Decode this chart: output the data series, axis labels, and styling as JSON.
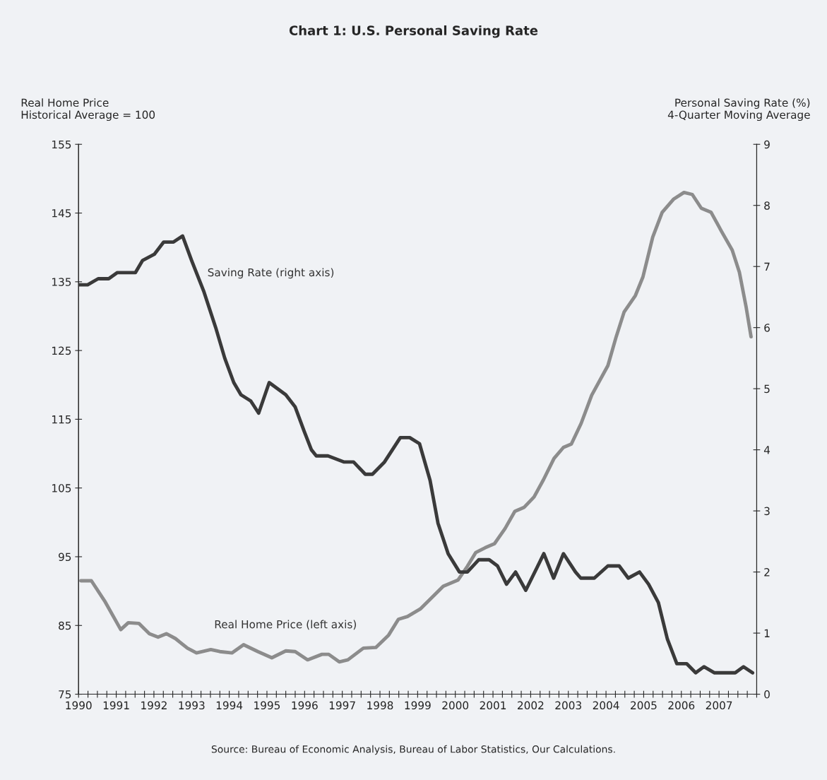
{
  "chart_data": {
    "type": "line",
    "title": "Chart 1: U.S. Personal Saving Rate",
    "ylabel": "Real Home Price\nHistorical Average = 100",
    "y2label": "Personal Saving Rate (%)\n4-Quarter Moving Average",
    "annotations": [
      "Source: Bureau of Economic Analysis, Bureau of Labor Statistics, Our Calculations."
    ],
    "series": [
      {
        "name": "Saving Rate (right axis)",
        "color": "#3a3a3a",
        "axis": "y2",
        "x": [
          1990.0,
          1990.24,
          1990.52,
          1990.8,
          1991.03,
          1991.51,
          1991.7,
          1992.01,
          1992.26,
          1992.52,
          1992.76,
          1993.0,
          1993.32,
          1993.64,
          1993.88,
          1994.12,
          1994.31,
          1994.57,
          1994.78,
          1995.06,
          1995.5,
          1995.75,
          1995.99,
          1996.18,
          1996.31,
          1996.62,
          1997.05,
          1997.3,
          1997.61,
          1997.8,
          1998.12,
          1998.54,
          1998.79,
          1999.05,
          1999.33,
          1999.54,
          1999.81,
          2000.11,
          2000.32,
          2000.62,
          2000.9,
          2001.12,
          2001.36,
          2001.6,
          2001.87,
          2002.35,
          2002.61,
          2002.87,
          2003.19,
          2003.33,
          2003.69,
          2004.05,
          2004.35,
          2004.59,
          2004.89,
          2005.13,
          2005.39,
          2005.63,
          2005.88,
          2006.14,
          2006.38,
          2006.6,
          2006.88,
          2007.43,
          2007.65,
          2007.89
        ],
        "values": [
          6.7,
          6.7,
          6.8,
          6.8,
          6.9,
          6.9,
          7.1,
          7.2,
          7.4,
          7.4,
          7.5,
          7.1,
          6.6,
          6.0,
          5.5,
          5.1,
          4.9,
          4.8,
          4.6,
          5.1,
          4.9,
          4.7,
          4.3,
          4.0,
          3.9,
          3.9,
          3.8,
          3.8,
          3.6,
          3.6,
          3.8,
          4.2,
          4.2,
          4.1,
          3.5,
          2.8,
          2.3,
          2.0,
          2.0,
          2.2,
          2.2,
          2.1,
          1.8,
          2.0,
          1.7,
          2.3,
          1.9,
          2.3,
          2.0,
          1.9,
          1.9,
          2.1,
          2.1,
          1.9,
          2.0,
          1.8,
          1.5,
          0.9,
          0.5,
          0.5,
          0.35,
          0.45,
          0.35,
          0.35,
          0.45,
          0.35
        ]
      },
      {
        "name": "Real Home Price (left axis)",
        "color": "#8c8c8c",
        "x": [
          1990.06,
          1990.34,
          1990.71,
          1991.12,
          1991.32,
          1991.6,
          1991.88,
          1992.11,
          1992.33,
          1992.57,
          1992.89,
          1993.13,
          1993.51,
          1993.75,
          1994.07,
          1994.38,
          1994.76,
          1995.13,
          1995.5,
          1995.75,
          1996.08,
          1996.46,
          1996.64,
          1996.92,
          1997.15,
          1997.56,
          1997.89,
          1998.23,
          1998.49,
          1998.73,
          1999.07,
          1999.42,
          1999.68,
          2000.07,
          2000.32,
          2000.54,
          2000.79,
          2001.04,
          2001.32,
          2001.58,
          2001.83,
          2002.09,
          2002.34,
          2002.62,
          2002.87,
          2003.08,
          2003.34,
          2003.62,
          2004.05,
          2004.27,
          2004.48,
          2004.78,
          2004.98,
          2005.24,
          2005.49,
          2005.79,
          2006.07,
          2006.29,
          2006.53,
          2006.79,
          2007.07,
          2007.35,
          2007.54,
          2007.72,
          2007.85
        ],
        "values": [
          91.5,
          91.5,
          88.4,
          84.4,
          85.4,
          85.3,
          83.8,
          83.3,
          83.8,
          83.1,
          81.7,
          81.0,
          81.5,
          81.2,
          81.0,
          82.2,
          81.2,
          80.3,
          81.3,
          81.2,
          80.0,
          80.8,
          80.8,
          79.7,
          80.0,
          81.7,
          81.8,
          83.6,
          85.9,
          86.3,
          87.4,
          89.3,
          90.7,
          91.6,
          93.6,
          95.6,
          96.3,
          96.9,
          99.1,
          101.6,
          102.2,
          103.7,
          106.2,
          109.3,
          110.9,
          111.4,
          114.4,
          118.5,
          122.8,
          127.0,
          130.6,
          133.0,
          135.7,
          141.5,
          145.1,
          147.0,
          148.0,
          147.7,
          145.7,
          145.1,
          142.3,
          139.6,
          136.4,
          131.3,
          127.0
        ]
      }
    ],
    "xlim": [
      1990,
      2008
    ],
    "xticks": [
      1990,
      {
        "value": 1990.25,
        "label": null
      },
      {
        "value": 1990.5,
        "label": null
      },
      {
        "value": 1990.75,
        "label": null
      },
      1991,
      {
        "value": 1991.25,
        "label": null
      },
      {
        "value": 1991.5,
        "label": null
      },
      {
        "value": 1991.75,
        "label": null
      },
      1992,
      {
        "value": 1992.25,
        "label": null
      },
      {
        "value": 1992.5,
        "label": null
      },
      {
        "value": 1992.75,
        "label": null
      },
      1993,
      {
        "value": 1993.25,
        "label": null
      },
      {
        "value": 1993.5,
        "label": null
      },
      {
        "value": 1993.75,
        "label": null
      },
      1994,
      {
        "value": 1994.25,
        "label": null
      },
      {
        "value": 1994.5,
        "label": null
      },
      {
        "value": 1994.75,
        "label": null
      },
      1995,
      {
        "value": 1995.25,
        "label": null
      },
      {
        "value": 1995.5,
        "label": null
      },
      {
        "value": 1995.75,
        "label": null
      },
      1996,
      {
        "value": 1996.25,
        "label": null
      },
      {
        "value": 1996.5,
        "label": null
      },
      {
        "value": 1996.75,
        "label": null
      },
      1997,
      {
        "value": 1997.25,
        "label": null
      },
      {
        "value": 1997.5,
        "label": null
      },
      {
        "value": 1997.75,
        "label": null
      },
      1998,
      {
        "value": 1998.25,
        "label": null
      },
      {
        "value": 1998.5,
        "label": null
      },
      {
        "value": 1998.75,
        "label": null
      },
      1999,
      {
        "value": 1999.25,
        "label": null
      },
      {
        "value": 1999.5,
        "label": null
      },
      {
        "value": 1999.75,
        "label": null
      },
      2000,
      {
        "value": 2000.25,
        "label": null
      },
      {
        "value": 2000.5,
        "label": null
      },
      {
        "value": 2000.75,
        "label": null
      },
      2001,
      {
        "value": 2001.25,
        "label": null
      },
      {
        "value": 2001.5,
        "label": null
      },
      {
        "value": 2001.75,
        "label": null
      },
      2002,
      {
        "value": 2002.25,
        "label": null
      },
      {
        "value": 2002.5,
        "label": null
      },
      {
        "value": 2002.75,
        "label": null
      },
      2003,
      {
        "value": 2003.25,
        "label": null
      },
      {
        "value": 2003.5,
        "label": null
      },
      {
        "value": 2003.75,
        "label": null
      },
      2004,
      {
        "value": 2004.25,
        "label": null
      },
      {
        "value": 2004.5,
        "label": null
      },
      {
        "value": 2004.75,
        "label": null
      },
      2005,
      {
        "value": 2005.25,
        "label": null
      },
      {
        "value": 2005.5,
        "label": null
      },
      {
        "value": 2005.75,
        "label": null
      },
      2006,
      {
        "value": 2006.25,
        "label": null
      },
      {
        "value": 2006.5,
        "label": null
      },
      {
        "value": 2006.75,
        "label": null
      },
      2007,
      {
        "value": 2007.25,
        "label": null
      },
      {
        "value": 2007.5,
        "label": null
      },
      {
        "value": 2007.75,
        "label": null
      },
      {
        "value": 2008,
        "label": null
      }
    ],
    "ylim": [
      75,
      155
    ],
    "yticks": [
      75,
      85,
      95,
      105,
      115,
      125,
      135,
      145,
      155
    ],
    "y2lim": [
      0,
      9
    ],
    "y2ticks": [
      0,
      1,
      2,
      3,
      4,
      5,
      6,
      7,
      8,
      9
    ],
    "grid": false,
    "legend": false,
    "marker": "none",
    "line_style": "solid"
  }
}
